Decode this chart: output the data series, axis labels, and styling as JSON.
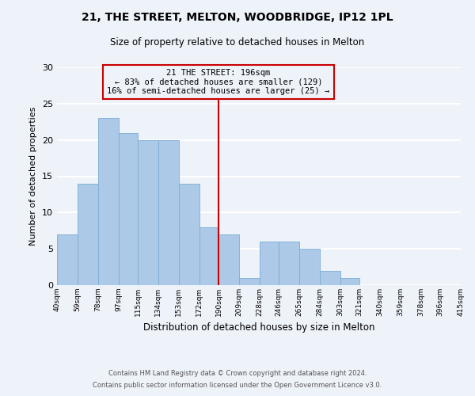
{
  "title1": "21, THE STREET, MELTON, WOODBRIDGE, IP12 1PL",
  "title2": "Size of property relative to detached houses in Melton",
  "xlabel": "Distribution of detached houses by size in Melton",
  "ylabel": "Number of detached properties",
  "bar_edges": [
    40,
    59,
    78,
    97,
    115,
    134,
    153,
    172,
    190,
    209,
    228,
    246,
    265,
    284,
    303,
    321,
    340,
    359,
    378,
    396,
    415
  ],
  "bar_heights": [
    7,
    14,
    23,
    21,
    20,
    20,
    14,
    8,
    7,
    1,
    6,
    6,
    5,
    2,
    1,
    0,
    0,
    0,
    0,
    0
  ],
  "bar_color": "#adc9e8",
  "bar_edgecolor": "#7aadd4",
  "reference_line_x": 190,
  "annotation_title": "21 THE STREET: 196sqm",
  "annotation_line1": "← 83% of detached houses are smaller (129)",
  "annotation_line2": "16% of semi-detached houses are larger (25) →",
  "annotation_box_edgecolor": "#cc0000",
  "reference_line_color": "#cc0000",
  "ylim": [
    0,
    30
  ],
  "yticks": [
    0,
    5,
    10,
    15,
    20,
    25,
    30
  ],
  "tick_labels": [
    "40sqm",
    "59sqm",
    "78sqm",
    "97sqm",
    "115sqm",
    "134sqm",
    "153sqm",
    "172sqm",
    "190sqm",
    "209sqm",
    "228sqm",
    "246sqm",
    "265sqm",
    "284sqm",
    "303sqm",
    "321sqm",
    "340sqm",
    "359sqm",
    "378sqm",
    "396sqm",
    "415sqm"
  ],
  "footnote1": "Contains HM Land Registry data © Crown copyright and database right 2024.",
  "footnote2": "Contains public sector information licensed under the Open Government Licence v3.0.",
  "background_color": "#eef2f9",
  "grid_color": "#ffffff",
  "title1_fontsize": 10,
  "title2_fontsize": 8.5,
  "ylabel_fontsize": 8,
  "xlabel_fontsize": 8.5,
  "annotation_fontsize": 7.5,
  "tick_fontsize": 6.5,
  "footnote_fontsize": 6
}
